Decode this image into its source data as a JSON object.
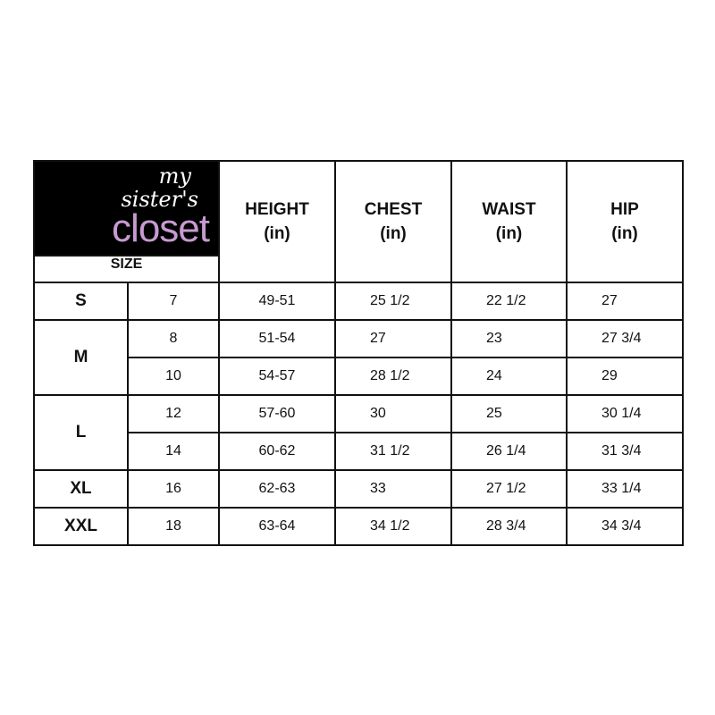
{
  "logo": {
    "line1": "my",
    "line2": "sister's",
    "line3": "closet",
    "color": "#c79ad0"
  },
  "size_label": "SIZE",
  "headers": [
    {
      "name": "HEIGHT",
      "unit": "(in)"
    },
    {
      "name": "CHEST",
      "unit": "(in)"
    },
    {
      "name": "WAIST",
      "unit": "(in)"
    },
    {
      "name": "HIP",
      "unit": "(in)"
    }
  ],
  "rows": [
    {
      "size": "S",
      "num": "7",
      "height": "49-51",
      "chest": "25 1/2",
      "waist": "22 1/2",
      "hip": "27"
    },
    {
      "size": "M",
      "num": "8",
      "height": "51-54",
      "chest": "27",
      "waist": "23",
      "hip": "27 3/4"
    },
    {
      "num": "10",
      "height": "54-57",
      "chest": "28 1/2",
      "waist": "24",
      "hip": "29"
    },
    {
      "size": "L",
      "num": "12",
      "height": "57-60",
      "chest": "30",
      "waist": "25",
      "hip": "30 1/4"
    },
    {
      "num": "14",
      "height": "60-62",
      "chest": "31 1/2",
      "waist": "26 1/4",
      "hip": "31 3/4"
    },
    {
      "size": "XL",
      "num": "16",
      "height": "62-63",
      "chest": "33",
      "waist": "27 1/2",
      "hip": "33 1/4"
    },
    {
      "size": "XXL",
      "num": "18",
      "height": "63-64",
      "chest": "34 1/2",
      "waist": "28 3/4",
      "hip": "34 3/4"
    }
  ]
}
